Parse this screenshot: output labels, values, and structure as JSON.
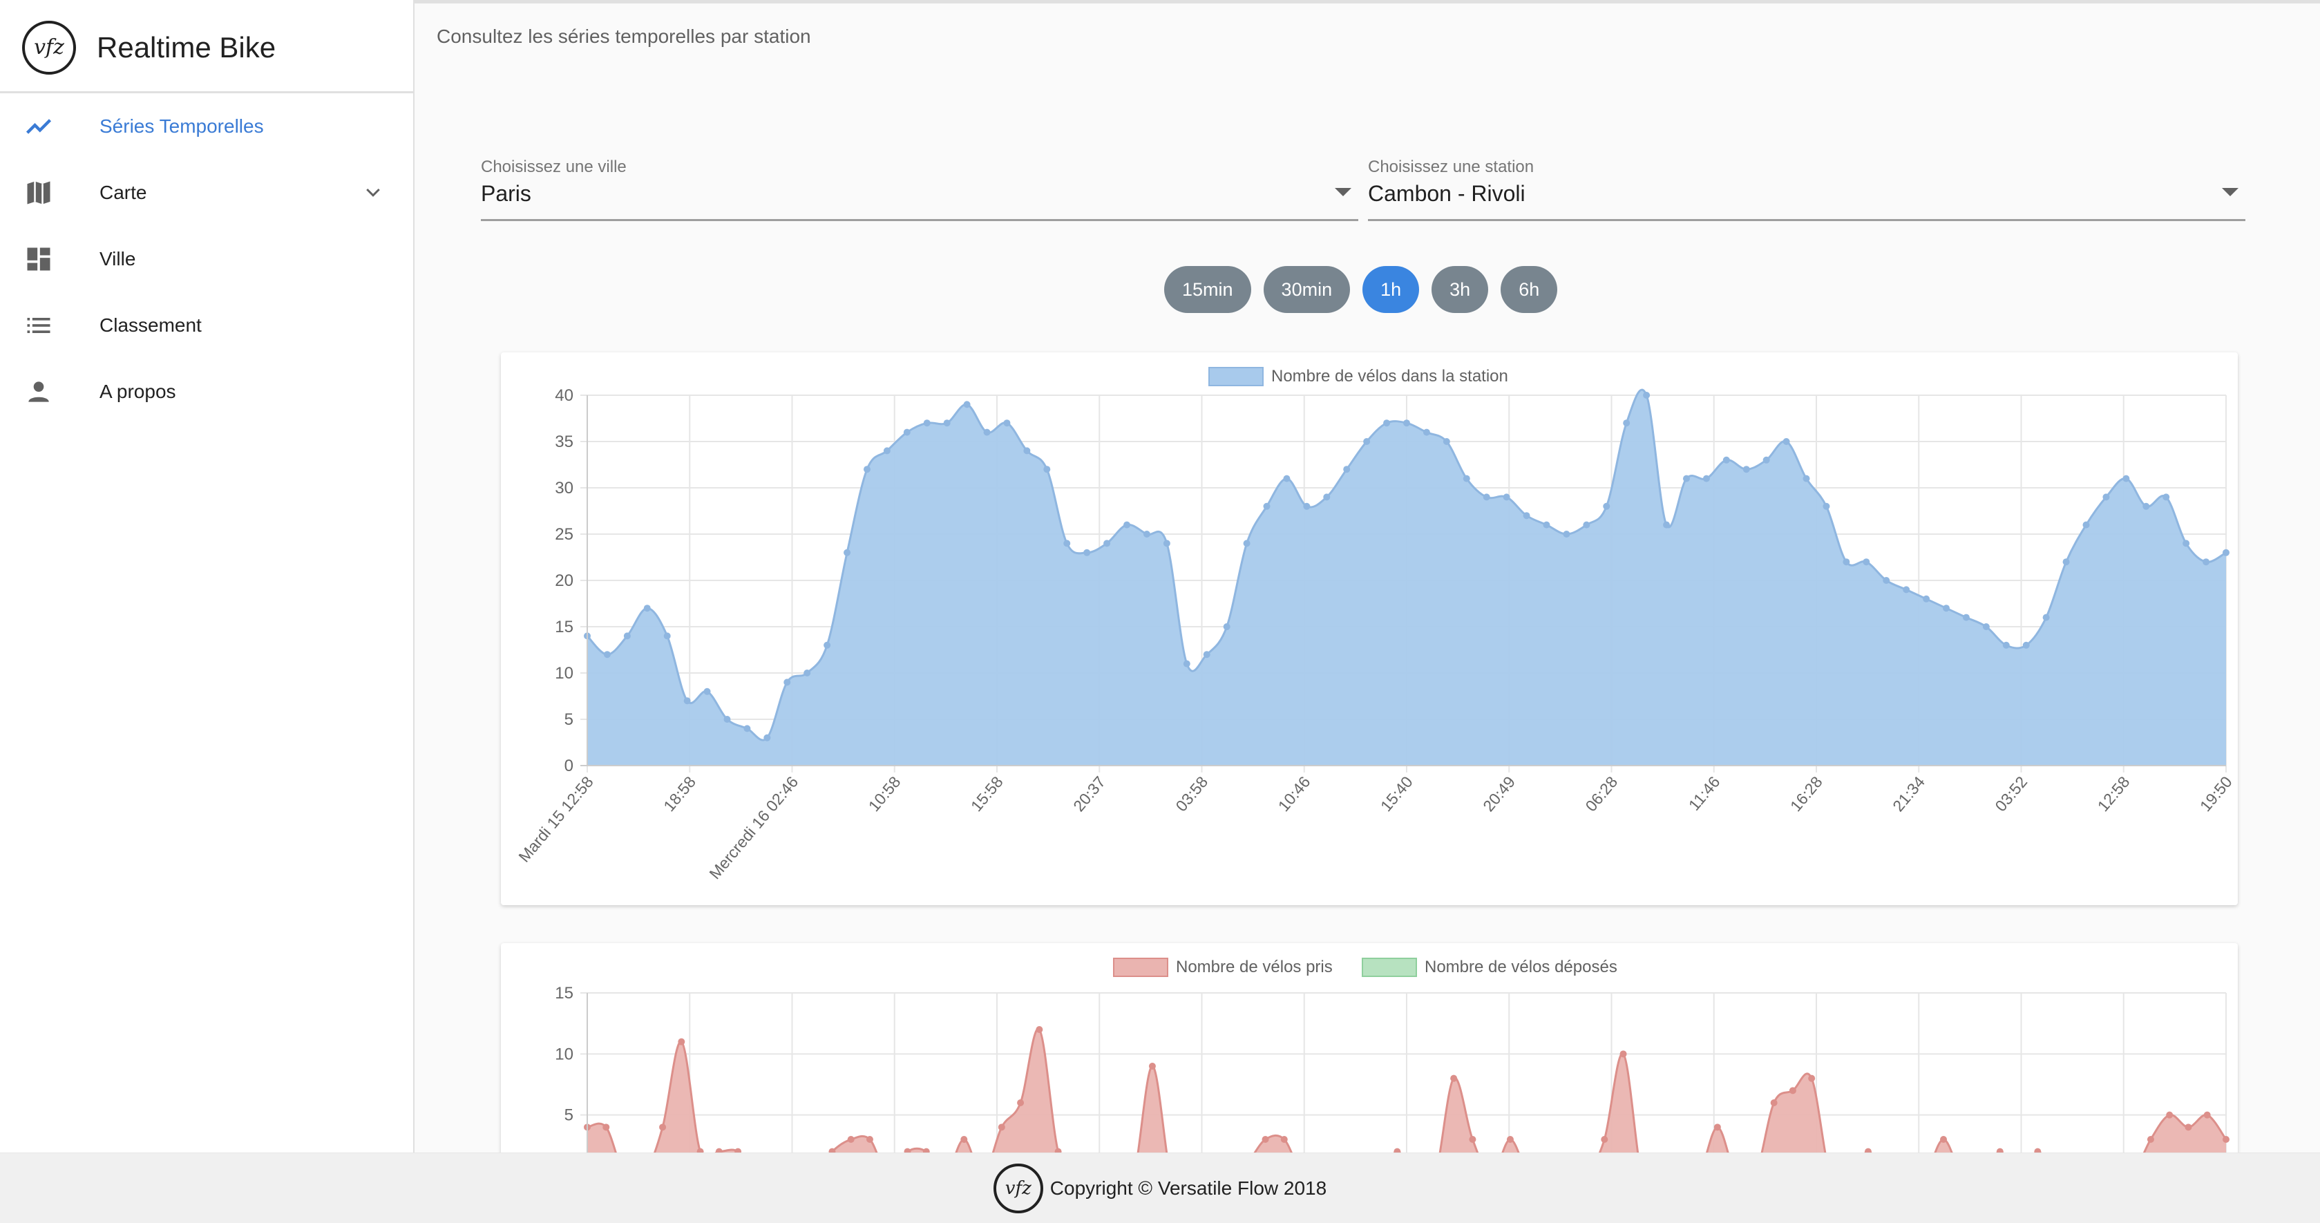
{
  "app": {
    "title": "Realtime Bike",
    "logo_text": "vfz",
    "subtitle": "Consultez les séries temporelles par station"
  },
  "sidebar": {
    "items": [
      {
        "label": "Séries Temporelles",
        "icon": "trending-up-icon",
        "active": true
      },
      {
        "label": "Carte",
        "icon": "map-icon",
        "has_submenu": true
      },
      {
        "label": "Ville",
        "icon": "dashboard-icon"
      },
      {
        "label": "Classement",
        "icon": "list-icon"
      },
      {
        "label": "A propos",
        "icon": "person-icon"
      }
    ]
  },
  "filters": {
    "city": {
      "label": "Choisissez une ville",
      "value": "Paris"
    },
    "station": {
      "label": "Choisissez une station",
      "value": "Cambon - Rivoli"
    }
  },
  "periods": [
    {
      "label": "15min",
      "active": false
    },
    {
      "label": "30min",
      "active": false
    },
    {
      "label": "1h",
      "active": true
    },
    {
      "label": "3h",
      "active": false
    },
    {
      "label": "6h",
      "active": false
    }
  ],
  "colors": {
    "accent": "#3a85e0",
    "series_bikes_fill": "#a8caec",
    "series_bikes_line": "#8fb6e0",
    "series_taken_fill": "#eab4b0",
    "series_taken_line": "#dc8f8a",
    "series_dropped_fill": "#b7e2c0",
    "inactive_button": "#78858f"
  },
  "footer": {
    "text": "Copyright © Versatile Flow 2018",
    "logo_text": "vfz"
  },
  "chart_data": [
    {
      "type": "area",
      "legend": [
        "Nombre de vélos dans la station"
      ],
      "xtick_labels": [
        "Mardi 15 12:58",
        "18:58",
        "Mercredi 16 02:46",
        "10:58",
        "15:58",
        "20:37",
        "03:58",
        "10:46",
        "15:40",
        "20:49",
        "06:28",
        "11:46",
        "16:28",
        "21:34",
        "03:52",
        "12:58",
        "19:50"
      ],
      "ylim": [
        0,
        40
      ],
      "yticks": [
        0,
        5,
        10,
        15,
        20,
        25,
        30,
        35,
        40
      ],
      "grid": true,
      "legend_position": "top",
      "series": [
        {
          "name": "Nombre de vélos dans la station",
          "values": [
            14,
            12,
            14,
            17,
            14,
            7,
            8,
            5,
            4,
            3,
            9,
            10,
            13,
            23,
            32,
            34,
            36,
            37,
            37,
            39,
            36,
            37,
            34,
            32,
            24,
            23,
            24,
            26,
            25,
            24,
            11,
            12,
            15,
            24,
            28,
            31,
            28,
            29,
            32,
            35,
            37,
            37,
            36,
            35,
            31,
            29,
            29,
            27,
            26,
            25,
            26,
            28,
            37,
            40,
            26,
            31,
            31,
            33,
            32,
            33,
            35,
            31,
            28,
            22,
            22,
            20,
            19,
            18,
            17,
            16,
            15,
            13,
            13,
            16,
            22,
            26,
            29,
            31,
            28,
            29,
            24,
            22,
            23
          ]
        }
      ]
    },
    {
      "type": "area",
      "legend": [
        "Nombre de vélos pris",
        "Nombre de vélos déposés"
      ],
      "ylim": [
        0,
        15
      ],
      "yticks": [
        5,
        10,
        15
      ],
      "grid": true,
      "legend_position": "top",
      "series": [
        {
          "name": "Nombre de vélos pris",
          "values": [
            4,
            4,
            0,
            0,
            4,
            11,
            2,
            2,
            2,
            0,
            0,
            0,
            0,
            2,
            3,
            3,
            0,
            2,
            2,
            0,
            3,
            0,
            4,
            6,
            12,
            2,
            0,
            0,
            0,
            0,
            9,
            0,
            0,
            0,
            0,
            1,
            3,
            3,
            0,
            0,
            0,
            0,
            0,
            2,
            0,
            0,
            8,
            3,
            0,
            3,
            0,
            0,
            0,
            0,
            3,
            10,
            0,
            0,
            0,
            0,
            4,
            0,
            0,
            6,
            7,
            8,
            0,
            0,
            2,
            0,
            0,
            0,
            3,
            0,
            0,
            2,
            0,
            2,
            0,
            0,
            0,
            0,
            0,
            3,
            5,
            4,
            5,
            3
          ]
        },
        {
          "name": "Nombre de vélos déposés",
          "values": []
        }
      ]
    }
  ]
}
